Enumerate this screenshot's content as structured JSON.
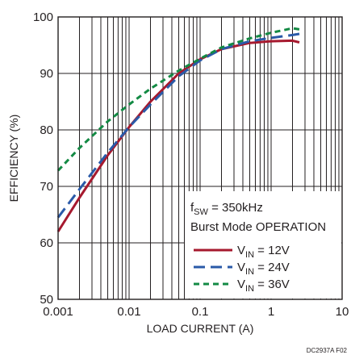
{
  "chart_data": {
    "type": "line",
    "title": "",
    "xlabel": "LOAD CURRENT (A)",
    "ylabel": "EFFICIENCY (%)",
    "xscale": "log",
    "xlim": [
      0.001,
      10
    ],
    "ylim": [
      50,
      100
    ],
    "grid": true,
    "x_ticks": [
      {
        "value": 0.001,
        "label": "0.001"
      },
      {
        "value": 0.01,
        "label": "0.01"
      },
      {
        "value": 0.1,
        "label": "0.1"
      },
      {
        "value": 1,
        "label": "1"
      },
      {
        "value": 10,
        "label": "10"
      }
    ],
    "y_ticks": [
      {
        "value": 50,
        "label": "50"
      },
      {
        "value": 60,
        "label": "60"
      },
      {
        "value": 70,
        "label": "70"
      },
      {
        "value": 80,
        "label": "80"
      },
      {
        "value": 90,
        "label": "90"
      },
      {
        "value": 100,
        "label": "100"
      }
    ],
    "annotation": {
      "line1_main": "f",
      "line1_sub": "SW",
      "line1_rest": " = 350kHz",
      "line2": "Burst Mode OPERATION"
    },
    "legend_position": "lower-right",
    "series": [
      {
        "legend_main": "V",
        "legend_sub": "IN",
        "legend_rest": " = 12V",
        "color": "#a6192e",
        "dash": "solid",
        "points": [
          [
            0.001,
            62
          ],
          [
            0.002,
            68
          ],
          [
            0.005,
            75.5
          ],
          [
            0.01,
            80.5
          ],
          [
            0.02,
            85
          ],
          [
            0.05,
            90
          ],
          [
            0.1,
            92.5
          ],
          [
            0.2,
            94.3
          ],
          [
            0.5,
            95.4
          ],
          [
            1,
            95.7
          ],
          [
            2,
            95.8
          ],
          [
            2.5,
            95.5
          ]
        ]
      },
      {
        "legend_main": "V",
        "legend_sub": "IN",
        "legend_rest": " = 24V",
        "color": "#2a5aa8",
        "dash": "long-dash",
        "points": [
          [
            0.001,
            64.5
          ],
          [
            0.002,
            69.5
          ],
          [
            0.005,
            76
          ],
          [
            0.01,
            80.5
          ],
          [
            0.02,
            84.5
          ],
          [
            0.05,
            89.5
          ],
          [
            0.1,
            92.3
          ],
          [
            0.2,
            94.3
          ],
          [
            0.5,
            95.7
          ],
          [
            1,
            96.3
          ],
          [
            2,
            96.8
          ],
          [
            2.5,
            97
          ]
        ]
      },
      {
        "legend_main": "V",
        "legend_sub": "IN",
        "legend_rest": " = 36V",
        "color": "#138a44",
        "dash": "short-dash",
        "points": [
          [
            0.001,
            72.8
          ],
          [
            0.002,
            76.8
          ],
          [
            0.005,
            81.5
          ],
          [
            0.01,
            84.5
          ],
          [
            0.02,
            87.3
          ],
          [
            0.05,
            90.5
          ],
          [
            0.1,
            92.6
          ],
          [
            0.2,
            94.6
          ],
          [
            0.5,
            96.2
          ],
          [
            1,
            97.2
          ],
          [
            2,
            98
          ],
          [
            2.5,
            97.8
          ]
        ]
      }
    ],
    "figure_id": "DC2937A F02"
  }
}
